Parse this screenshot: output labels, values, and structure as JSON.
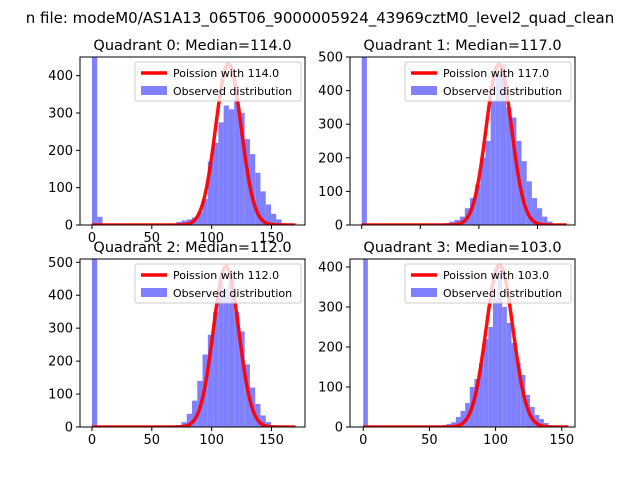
{
  "figure": {
    "suptitle": "n file: modeM0/AS1A13_065T06_9000005924_43969cztM0_level2_quad_clean"
  },
  "colors": {
    "hist_fill": "#8080ff",
    "poisson_line": "#ff0000",
    "axes": "#000000",
    "background": "#ffffff"
  },
  "chart_data": [
    {
      "type": "bar",
      "title": "Quadrant 0: Median=114.0",
      "xlim": [
        -10,
        178
      ],
      "ylim": [
        0,
        450
      ],
      "xticks": [
        0,
        50,
        100,
        150
      ],
      "yticks": [
        0,
        100,
        200,
        300,
        400
      ],
      "show_xtick_labels": true,
      "legend": {
        "position": "upper right",
        "entries": [
          "Poission with 114.0",
          "Observed distribution"
        ]
      },
      "poisson_mean": 114.0,
      "poisson_peak": 432,
      "poisson_range": [
        0,
        170
      ],
      "bin_width": 4.4,
      "histogram": {
        "x": [
          0,
          4.4,
          61.6,
          66,
          70.4,
          74.8,
          79.2,
          83.6,
          88,
          92.4,
          96.8,
          101.2,
          105.6,
          110,
          114.4,
          118.8,
          123.2,
          127.6,
          132,
          136.4,
          140.8,
          145.2,
          149.6,
          154,
          158.4
        ],
        "y": [
          450,
          22,
          2,
          3,
          8,
          12,
          15,
          20,
          35,
          70,
          170,
          220,
          275,
          320,
          310,
          340,
          300,
          230,
          190,
          140,
          90,
          55,
          30,
          15,
          5
        ]
      }
    },
    {
      "type": "bar",
      "title": "Quadrant 1: Median=117.0",
      "xlim": [
        -10,
        182
      ],
      "ylim": [
        0,
        500
      ],
      "xticks": [
        0,
        50,
        100,
        150
      ],
      "yticks": [
        0,
        100,
        200,
        300,
        400,
        500
      ],
      "show_xtick_labels": false,
      "legend": {
        "position": "upper right",
        "entries": [
          "Poission with 117.0",
          "Observed distribution"
        ]
      },
      "poisson_mean": 117.0,
      "poisson_peak": 478,
      "poisson_range": [
        0,
        175
      ],
      "bin_width": 4.4,
      "histogram": {
        "x": [
          0,
          61.6,
          66,
          70.4,
          74.8,
          79.2,
          83.6,
          88,
          92.4,
          96.8,
          101.2,
          105.6,
          110,
          114.4,
          118.8,
          123.2,
          127.6,
          132,
          136.4,
          140.8,
          145.2,
          149.6,
          154,
          158.4,
          162.8
        ],
        "y": [
          500,
          2,
          4,
          6,
          10,
          15,
          25,
          50,
          80,
          120,
          200,
          250,
          370,
          450,
          480,
          350,
          320,
          250,
          190,
          130,
          80,
          50,
          25,
          10,
          3
        ]
      }
    },
    {
      "type": "bar",
      "title": "Quadrant 2: Median=112.0",
      "xlim": [
        -10,
        178
      ],
      "ylim": [
        0,
        510
      ],
      "xticks": [
        0,
        50,
        100,
        150
      ],
      "yticks": [
        0,
        100,
        200,
        300,
        400,
        500
      ],
      "show_xtick_labels": true,
      "legend": {
        "position": "upper right",
        "entries": [
          "Poission with 112.0",
          "Observed distribution"
        ]
      },
      "poisson_mean": 112.0,
      "poisson_peak": 488,
      "poisson_range": [
        0,
        170
      ],
      "bin_width": 4.4,
      "histogram": {
        "x": [
          0,
          66,
          70.4,
          74.8,
          79.2,
          83.6,
          88,
          92.4,
          96.8,
          101.2,
          105.6,
          110,
          114.4,
          118.8,
          123.2,
          127.6,
          132,
          136.4,
          140.8,
          145.2,
          149.6
        ],
        "y": [
          510,
          3,
          6,
          15,
          40,
          80,
          140,
          220,
          280,
          350,
          440,
          420,
          460,
          350,
          290,
          190,
          120,
          70,
          35,
          15,
          5
        ]
      }
    },
    {
      "type": "bar",
      "title": "Quadrant 3: Median=103.0",
      "xlim": [
        -10,
        160
      ],
      "ylim": [
        0,
        420
      ],
      "xticks": [
        0,
        50,
        100,
        150
      ],
      "yticks": [
        0,
        100,
        200,
        300,
        400
      ],
      "show_xtick_labels": true,
      "legend": {
        "position": "upper right",
        "entries": [
          "Poission with 103.0",
          "Observed distribution"
        ]
      },
      "poisson_mean": 103.0,
      "poisson_peak": 405,
      "poisson_range": [
        0,
        155
      ],
      "bin_width": 3.5,
      "histogram": {
        "x": [
          0,
          52.5,
          56,
          59.5,
          63,
          66.5,
          70,
          73.5,
          77,
          80.5,
          84,
          87.5,
          91,
          94.5,
          98,
          101.5,
          105,
          108.5,
          112,
          115.5,
          119,
          122.5,
          126,
          129.5,
          133,
          136.5,
          140
        ],
        "y": [
          420,
          2,
          3,
          5,
          8,
          12,
          25,
          40,
          60,
          100,
          120,
          160,
          220,
          250,
          320,
          400,
          300,
          260,
          210,
          160,
          130,
          80,
          50,
          30,
          20,
          10,
          3
        ]
      }
    }
  ]
}
